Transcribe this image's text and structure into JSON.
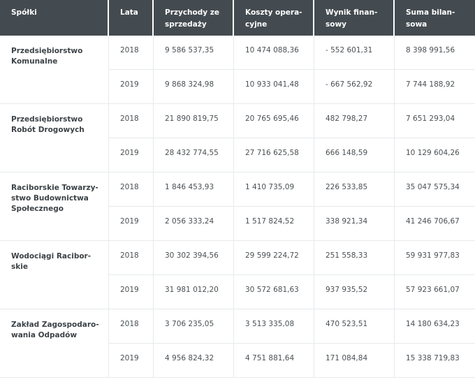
{
  "table": {
    "headers": [
      {
        "lines": [
          "Spółki"
        ]
      },
      {
        "lines": [
          "Lata"
        ]
      },
      {
        "lines": [
          "Przychody ze",
          "sprzedaży"
        ]
      },
      {
        "lines": [
          "Koszty opera-",
          "cyjne"
        ]
      },
      {
        "lines": [
          "Wynik finan-",
          "sowy"
        ]
      },
      {
        "lines": [
          "Suma bilan-",
          "sowa"
        ]
      }
    ],
    "companies": [
      {
        "name_lines": [
          "Przedsiębiorstwo",
          "Komunalne"
        ],
        "rows": [
          {
            "year": "2018",
            "revenue": "9 586 537,35",
            "costs": "10 474 088,36",
            "result": "- 552 601,31",
            "balance": "8 398 991,56"
          },
          {
            "year": "2019",
            "revenue": "9 868 324,98",
            "costs": "10 933 041,48",
            "result": "- 667 562,92",
            "balance": "7 744 188,92"
          }
        ]
      },
      {
        "name_lines": [
          "Przedsiębiorstwo",
          "Robót Drogowych"
        ],
        "rows": [
          {
            "year": "2018",
            "revenue": "21 890 819,75",
            "costs": "20 765 695,46",
            "result": "482 798,27",
            "balance": "7 651 293,04"
          },
          {
            "year": "2019",
            "revenue": "28 432 774,55",
            "costs": "27 716 625,58",
            "result": "666 148,59",
            "balance": "10 129 604,26"
          }
        ]
      },
      {
        "name_lines": [
          "Raciborskie Towarzy-",
          "stwo Budownictwa",
          "Społecznego"
        ],
        "rows": [
          {
            "year": "2018",
            "revenue": "1 846 453,93",
            "costs": "1 410 735,09",
            "result": "226 533,85",
            "balance": "35 047 575,34"
          },
          {
            "year": "2019",
            "revenue": "2 056 333,24",
            "costs": "1 517 824,52",
            "result": "338 921,34",
            "balance": "41 246 706,67"
          }
        ]
      },
      {
        "name_lines": [
          "Wodociągi Racibor-",
          "skie"
        ],
        "rows": [
          {
            "year": "2018",
            "revenue": "30 302 394,56",
            "costs": "29 599 224,72",
            "result": "251 558,33",
            "balance": "59 931 977,83"
          },
          {
            "year": "2019",
            "revenue": "31 981 012,20",
            "costs": "30 572 681,63",
            "result": "937 935,52",
            "balance": "57 923 661,07"
          }
        ]
      },
      {
        "name_lines": [
          "Zakład Zagospodaro-",
          "wania Odpadów"
        ],
        "rows": [
          {
            "year": "2018",
            "revenue": "3 706 235,05",
            "costs": "3 513 335,08",
            "result": "470 523,51",
            "balance": "14 180 634,23"
          },
          {
            "year": "2019",
            "revenue": "4 956 824,32",
            "costs": "4 751 881,64",
            "result": "171 084,84",
            "balance": "15 338 719,83"
          }
        ]
      }
    ]
  }
}
